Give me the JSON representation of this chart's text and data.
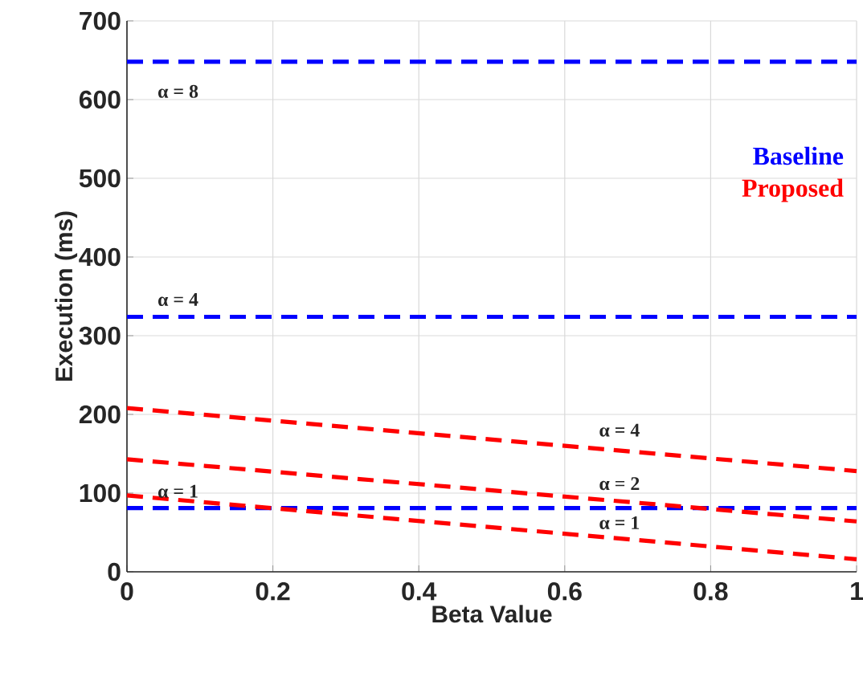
{
  "chart_data": {
    "type": "line",
    "xlabel": "Beta Value",
    "ylabel": "Execution (ms)",
    "x": [
      0,
      1
    ],
    "series": [
      {
        "name": "Baseline",
        "color": "#0000ff",
        "values": [
          648,
          648
        ]
      },
      {
        "color": "#0000ff",
        "values": [
          324,
          324
        ]
      },
      {
        "color": "#0000ff",
        "values": [
          81,
          81
        ]
      },
      {
        "name": "Proposed",
        "color": "#ff0000",
        "values": [
          208,
          128
        ]
      },
      {
        "color": "#ff0000",
        "values": [
          143,
          64
        ]
      },
      {
        "color": "#ff0000",
        "values": [
          97,
          16
        ]
      }
    ],
    "annotations": [
      "α = 8",
      "α = 4",
      "α = 1",
      "α = 4",
      "α = 2",
      "α = 1"
    ],
    "xlim": [
      0,
      1
    ],
    "ylim": [
      0,
      700
    ],
    "xticks": [
      0,
      0.2,
      0.4,
      0.6,
      0.8,
      1
    ],
    "yticks": [
      0,
      100,
      200,
      300,
      400,
      500,
      600,
      700
    ],
    "grid": true,
    "legend": "top right",
    "line_style": "dashed",
    "marker": "none"
  }
}
